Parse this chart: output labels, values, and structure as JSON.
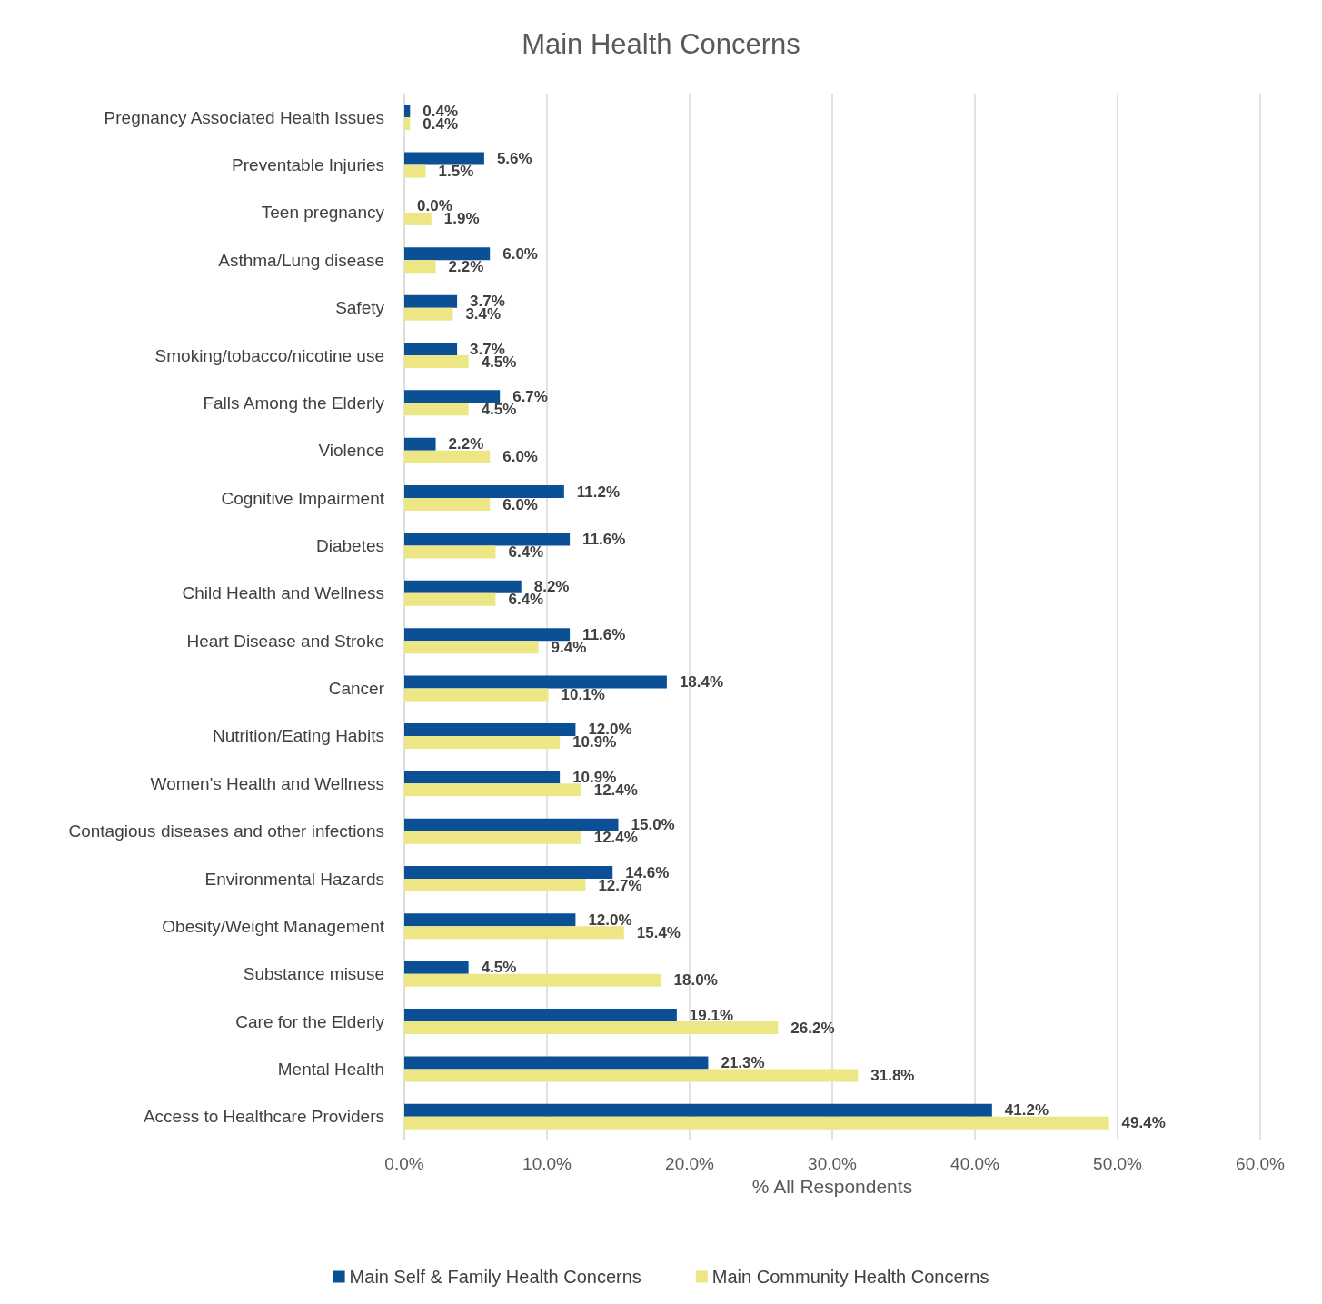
{
  "chart_data": {
    "type": "bar",
    "orientation": "horizontal",
    "title": "Main Health Concerns",
    "xlabel": "% All Respondents",
    "categories": [
      "Pregnancy Associated Health Issues",
      "Preventable Injuries",
      "Teen pregnancy",
      "Asthma/Lung disease",
      "Safety",
      "Smoking/tobacco/nicotine use",
      "Falls Among the Elderly",
      "Violence",
      "Cognitive Impairment",
      "Diabetes",
      "Child Health and Wellness",
      "Heart Disease and Stroke",
      "Cancer",
      "Nutrition/Eating Habits",
      "Women's Health and Wellness",
      "Contagious diseases and other infections",
      "Environmental Hazards",
      "Obesity/Weight Management",
      "Substance misuse",
      "Care for the Elderly",
      "Mental Health",
      "Access to Healthcare Providers"
    ],
    "series": [
      {
        "name": "Main Self & Family Health Concerns",
        "color": "#0b4f95",
        "values": [
          0.4,
          5.6,
          0.0,
          6.0,
          3.7,
          3.7,
          6.7,
          2.2,
          11.2,
          11.6,
          8.2,
          11.6,
          18.4,
          12.0,
          10.9,
          15.0,
          14.6,
          12.0,
          4.5,
          19.1,
          21.3,
          41.2
        ],
        "value_labels": [
          "0.4%",
          "5.6%",
          "0.0%",
          "6.0%",
          "3.7%",
          "3.7%",
          "6.7%",
          "2.2%",
          "11.2%",
          "11.6%",
          "8.2%",
          "11.6%",
          "18.4%",
          "12.0%",
          "10.9%",
          "15.0%",
          "14.6%",
          "12.0%",
          "4.5%",
          "19.1%",
          "21.3%",
          "41.2%"
        ]
      },
      {
        "name": "Main Community Health Concerns",
        "color": "#ede684",
        "values": [
          0.4,
          1.5,
          1.9,
          2.2,
          3.4,
          4.5,
          4.5,
          6.0,
          6.0,
          6.4,
          6.4,
          9.4,
          10.1,
          10.9,
          12.4,
          12.4,
          12.7,
          15.4,
          18.0,
          26.2,
          31.8,
          49.4
        ],
        "value_labels": [
          "0.4%",
          "1.5%",
          "1.9%",
          "2.2%",
          "3.4%",
          "4.5%",
          "4.5%",
          "6.0%",
          "6.0%",
          "6.4%",
          "6.4%",
          "9.4%",
          "10.1%",
          "10.9%",
          "12.4%",
          "12.4%",
          "12.7%",
          "15.4%",
          "18.0%",
          "26.2%",
          "31.8%",
          "49.4%"
        ]
      }
    ],
    "xlim": [
      0,
      60
    ],
    "xticks": [
      {
        "value": 0,
        "label": "0.0%"
      },
      {
        "value": 10,
        "label": "10.0%"
      },
      {
        "value": 20,
        "label": "20.0%"
      },
      {
        "value": 30,
        "label": "30.0%"
      },
      {
        "value": 40,
        "label": "40.0%"
      },
      {
        "value": 50,
        "label": "50.0%"
      },
      {
        "value": 60,
        "label": "60.0%"
      }
    ],
    "grid": "x",
    "legend": "bottom"
  }
}
